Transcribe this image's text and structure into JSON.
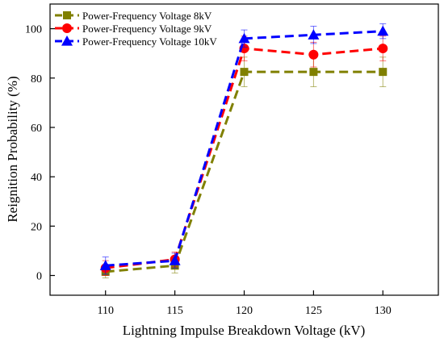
{
  "chart_data": {
    "type": "line",
    "xlabel": "Lightning Impulse Breakdown Voltage (kV)",
    "ylabel": "Reignition Probability (%)",
    "x": [
      110,
      115,
      120,
      125,
      130
    ],
    "xlim": [
      106,
      134
    ],
    "ylim": [
      -8,
      110
    ],
    "xticks": [
      110,
      115,
      120,
      125,
      130
    ],
    "yticks": [
      0,
      20,
      40,
      60,
      80,
      100
    ],
    "grid": false,
    "legend_position": "top-left",
    "series": [
      {
        "name": "Power-Frequency Voltage 8kV",
        "values": [
          1.5,
          4,
          82.5,
          82.5,
          82.5
        ],
        "errors": [
          2.5,
          3,
          6,
          6,
          6
        ],
        "color": "#808000",
        "marker": "square",
        "line_style": "dashed"
      },
      {
        "name": "Power-Frequency Voltage 9kV",
        "values": [
          3,
          6.5,
          92,
          89.5,
          92
        ],
        "errors": [
          3,
          3,
          5,
          5,
          5
        ],
        "color": "#ff0000",
        "marker": "circle",
        "line_style": "dashed"
      },
      {
        "name": "Power-Frequency Voltage 10kV",
        "values": [
          4,
          6,
          96,
          97.5,
          99
        ],
        "errors": [
          3.5,
          3,
          3.5,
          3.5,
          3
        ],
        "color": "#0000ff",
        "marker": "triangle",
        "line_style": "dashed"
      }
    ]
  }
}
